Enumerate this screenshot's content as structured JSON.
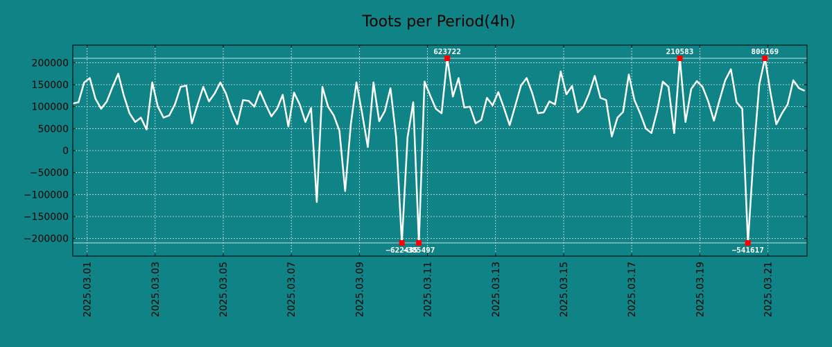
{
  "chart_data": {
    "type": "line",
    "title": "Toots per Period(4h)",
    "xlabel": "",
    "ylabel": "",
    "ylim": [
      -240000,
      240000
    ],
    "yticks": [
      -200000,
      -150000,
      -100000,
      -50000,
      0,
      50000,
      100000,
      150000,
      200000
    ],
    "ytick_labels": [
      "−200000",
      "−150000",
      "−100000",
      "−50000",
      "0",
      "50000",
      "100000",
      "150000",
      "200000"
    ],
    "xlim": [
      -0.42,
      21.15
    ],
    "xticks": [
      0,
      2,
      4,
      6,
      8,
      10,
      12,
      14,
      16,
      18,
      20
    ],
    "xtick_labels": [
      "2025.03.01",
      "2025.03.03",
      "2025.03.05",
      "2025.03.07",
      "2025.03.09",
      "2025.03.11",
      "2025.03.13",
      "2025.03.15",
      "2025.03.17",
      "2025.03.19",
      "2025.03.21"
    ],
    "period_days": 0.16667,
    "start_day": -0.42,
    "clip_upper": 210000,
    "clip_lower": -210000,
    "grid": true,
    "colors": {
      "background": "#108386",
      "line": "#ffffff",
      "grid": "#d8e6e6",
      "marker": "#ff0000"
    },
    "series": [
      {
        "name": "toots",
        "values": [
          107000,
          110000,
          155000,
          165000,
          118000,
          95000,
          112000,
          145000,
          175000,
          125000,
          85000,
          65000,
          75000,
          48000,
          155000,
          100000,
          75000,
          80000,
          105000,
          145000,
          148000,
          62000,
          105000,
          145000,
          112000,
          130000,
          155000,
          130000,
          90000,
          60000,
          115000,
          113000,
          100000,
          135000,
          105000,
          78000,
          95000,
          127000,
          55000,
          132000,
          105000,
          65000,
          97000,
          -117000,
          145000,
          100000,
          80000,
          45000,
          -92000,
          60000,
          155000,
          85000,
          8000,
          155000,
          67000,
          90000,
          142000,
          30000,
          -210000,
          30000,
          110000,
          -210000,
          157000,
          125000,
          95000,
          85000,
          210000,
          123000,
          165000,
          98000,
          100000,
          62000,
          70000,
          120000,
          103000,
          133000,
          97000,
          58000,
          103000,
          148000,
          165000,
          130000,
          85000,
          87000,
          112000,
          105000,
          180000,
          128000,
          147000,
          87000,
          100000,
          130000,
          170000,
          120000,
          115000,
          32000,
          75000,
          88000,
          173000,
          115000,
          85000,
          50000,
          40000,
          90000,
          157000,
          145000,
          40000,
          210000,
          65000,
          140000,
          158000,
          145000,
          112000,
          68000,
          115000,
          160000,
          185000,
          110000,
          95000,
          -210000,
          -10000,
          150000,
          210000,
          130000,
          60000,
          85000,
          105000,
          160000,
          142000,
          136000
        ]
      }
    ],
    "annotations": [
      {
        "index": 58,
        "label": "−622435",
        "position": "below"
      },
      {
        "index": 61,
        "label": "−385497",
        "position": "below"
      },
      {
        "index": 66,
        "label": "623722",
        "position": "above"
      },
      {
        "index": 107,
        "label": "210583",
        "position": "above"
      },
      {
        "index": 119,
        "label": "−541617",
        "position": "below"
      },
      {
        "index": 122,
        "label": "806169",
        "position": "above"
      }
    ]
  }
}
